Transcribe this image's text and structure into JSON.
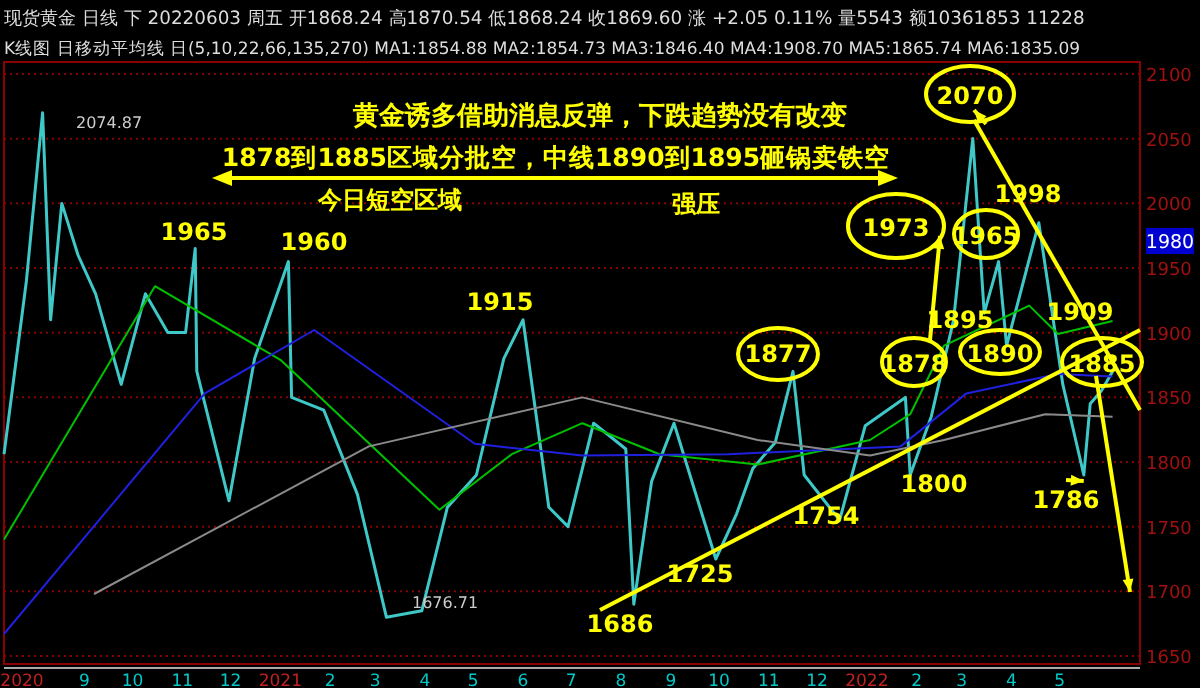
{
  "chart_data": {
    "type": "line",
    "title": "黄金诱多借助消息反弹，下跌趋势没有改变",
    "xlim": [
      "2020-07-13",
      "2022-06-20"
    ],
    "ylim": [
      1650,
      2100
    ],
    "yticks": [
      1650,
      1700,
      1750,
      1800,
      1850,
      1900,
      1950,
      2000,
      2050,
      2100
    ],
    "xticks": [
      {
        "value": "2020-07-13",
        "label": "2020"
      },
      {
        "value": "2020-09-01",
        "label": "9"
      },
      {
        "value": "2020-10-01",
        "label": "10"
      },
      {
        "value": "2020-11-01",
        "label": "11"
      },
      {
        "value": "2020-12-01",
        "label": "12"
      },
      {
        "value": "2021-01-01",
        "label": "2021"
      },
      {
        "value": "2021-02-01",
        "label": "2"
      },
      {
        "value": "2021-03-01",
        "label": "3"
      },
      {
        "value": "2021-04-01",
        "label": "4"
      },
      {
        "value": "2021-05-01",
        "label": "5"
      },
      {
        "value": "2021-06-01",
        "label": "6"
      },
      {
        "value": "2021-07-01",
        "label": "7"
      },
      {
        "value": "2021-08-01",
        "label": "8"
      },
      {
        "value": "2021-09-01",
        "label": "9"
      },
      {
        "value": "2021-10-01",
        "label": "10"
      },
      {
        "value": "2021-11-01",
        "label": "11"
      },
      {
        "value": "2021-12-01",
        "label": "12"
      },
      {
        "value": "2022-01-01",
        "label": "2022"
      },
      {
        "value": "2022-02-01",
        "label": "2"
      },
      {
        "value": "2022-03-01",
        "label": "3"
      },
      {
        "value": "2022-04-01",
        "label": "4"
      },
      {
        "value": "2022-05-01",
        "label": "5"
      }
    ],
    "grid": "y",
    "series": [
      {
        "color": "#3fc8c8",
        "x": [
          "2020-07-13",
          "2020-07-27",
          "2020-08-06",
          "2020-08-11",
          "2020-08-18",
          "2020-08-28",
          "2020-09-08",
          "2020-09-24",
          "2020-10-09",
          "2020-10-23",
          "2020-11-03",
          "2020-11-09",
          "2020-11-10",
          "2020-11-30",
          "2020-12-16",
          "2021-01-06",
          "2021-01-08",
          "2021-01-28",
          "2021-02-18",
          "2021-03-08",
          "2021-03-30",
          "2021-04-15",
          "2021-05-03",
          "2021-05-20",
          "2021-06-01",
          "2021-06-17",
          "2021-06-29",
          "2021-07-15",
          "2021-08-04",
          "2021-08-09",
          "2021-08-20",
          "2021-09-03",
          "2021-09-29",
          "2021-10-12",
          "2021-10-22",
          "2021-11-05",
          "2021-11-16",
          "2021-11-23",
          "2021-12-15",
          "2021-12-31",
          "2022-01-25",
          "2022-01-28",
          "2022-02-10",
          "2022-02-24",
          "2022-03-08",
          "2022-03-15",
          "2022-03-24",
          "2022-03-29",
          "2022-04-18",
          "2022-05-03",
          "2022-05-16",
          "2022-05-20",
          "2022-05-27",
          "2022-06-03"
        ],
        "values": [
          1806,
          1940,
          2070,
          1910,
          2000,
          1960,
          1930,
          1860,
          1930,
          1900,
          1900,
          1965,
          1870,
          1770,
          1880,
          1955,
          1850,
          1840,
          1775,
          1680,
          1685,
          1765,
          1790,
          1880,
          1910,
          1765,
          1750,
          1830,
          1810,
          1690,
          1785,
          1830,
          1725,
          1760,
          1795,
          1815,
          1870,
          1790,
          1755,
          1828,
          1850,
          1790,
          1835,
          1910,
          2050,
          1915,
          1955,
          1890,
          1985,
          1860,
          1790,
          1845,
          1855,
          1870
        ]
      },
      {
        "color": "#00c000",
        "x": [
          "2020-07-13",
          "2020-10-15",
          "2021-01-01",
          "2021-04-10",
          "2021-05-25",
          "2021-07-08",
          "2021-08-25",
          "2021-10-25",
          "2022-01-03",
          "2022-01-28",
          "2022-02-18",
          "2022-04-12",
          "2022-04-30",
          "2022-06-03"
        ],
        "values": [
          1740,
          1936,
          1879,
          1763,
          1806,
          1830,
          1806,
          1798,
          1817,
          1837,
          1890,
          1921,
          1899,
          1909
        ]
      },
      {
        "color": "#2020e0",
        "x": [
          "2020-07-13",
          "2020-11-15",
          "2021-01-22",
          "2021-05-02",
          "2021-07-08",
          "2021-10-07",
          "2022-01-22",
          "2022-03-04",
          "2022-04-30",
          "2022-06-03"
        ],
        "values": [
          1667,
          1853,
          1902,
          1814,
          1805,
          1806,
          1812,
          1853,
          1868,
          1866
        ]
      },
      {
        "color": "#8a8a8a",
        "x": [
          "2020-09-07",
          "2021-02-25",
          "2021-07-08",
          "2021-10-25",
          "2022-01-03",
          "2022-02-18",
          "2022-04-22",
          "2022-06-03"
        ],
        "values": [
          1698,
          1812,
          1850,
          1817,
          1805,
          1817,
          1837,
          1835
        ]
      }
    ],
    "annotations": [
      "现货黄金 日线 下 20220603 周五 开1868.24 高1870.54 低1868.24 收1869.60 涨 +2.05 0.11% 量5543 额10361853 11228",
      "K线图 日移动平均线 日(5,10,22,66,135,270) MA1:1854.88 MA2:1854.73 MA3:1846.40 MA4:1908.70 MA5:1865.74 MA6:1835.09",
      "1878到1885区域分批空，中线1890到1895砸锅卖铁空",
      "今日短空区域",
      "强压",
      "1980",
      "2074.87",
      "1676.71",
      "1965",
      "1960",
      "1915",
      "1877",
      "1686",
      "1725",
      "1754",
      "1800",
      "1878",
      "1895",
      "1973",
      "2070",
      "1965",
      "1890",
      "1998",
      "1909",
      "1885",
      {
        "text": "1786",
        "x": "2022-05-16",
        "y": 1790
      }
    ]
  }
}
